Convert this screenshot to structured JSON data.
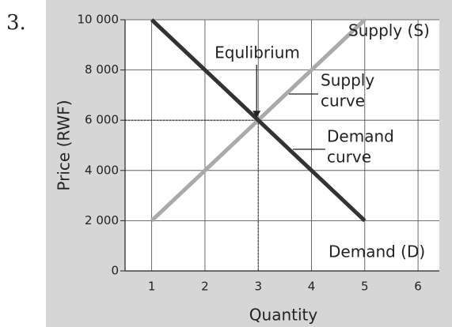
{
  "chart_data": {
    "type": "line",
    "label": "3.",
    "xlabel": "Quantity",
    "ylabel": "Price (RWF)",
    "xlim": [
      0.5,
      6.4
    ],
    "ylim": [
      0,
      10000
    ],
    "xticks": [
      1,
      2,
      3,
      4,
      5,
      6
    ],
    "yticks": [
      0,
      {
        "value": 2000,
        "label": "2 000"
      },
      {
        "value": 4000,
        "label": "4 000"
      },
      {
        "value": 6000,
        "label": "6 000"
      },
      {
        "value": 8000,
        "label": "8 000"
      },
      {
        "value": 10000,
        "label": "10 000"
      }
    ],
    "grid": true,
    "series": [
      {
        "name": "Demand (D)",
        "color": "#333333",
        "x": [
          1,
          5
        ],
        "values": [
          10000,
          2000
        ]
      },
      {
        "name": "Supply (S)",
        "color": "#aaaaaa",
        "x": [
          1,
          5
        ],
        "values": [
          2000,
          10000
        ]
      }
    ],
    "equilibrium": {
      "x": 3,
      "y": 6000
    },
    "annotations": [
      "Equlibrium",
      [
        "Supply",
        "curve"
      ],
      [
        "Demand",
        "curve"
      ]
    ]
  }
}
